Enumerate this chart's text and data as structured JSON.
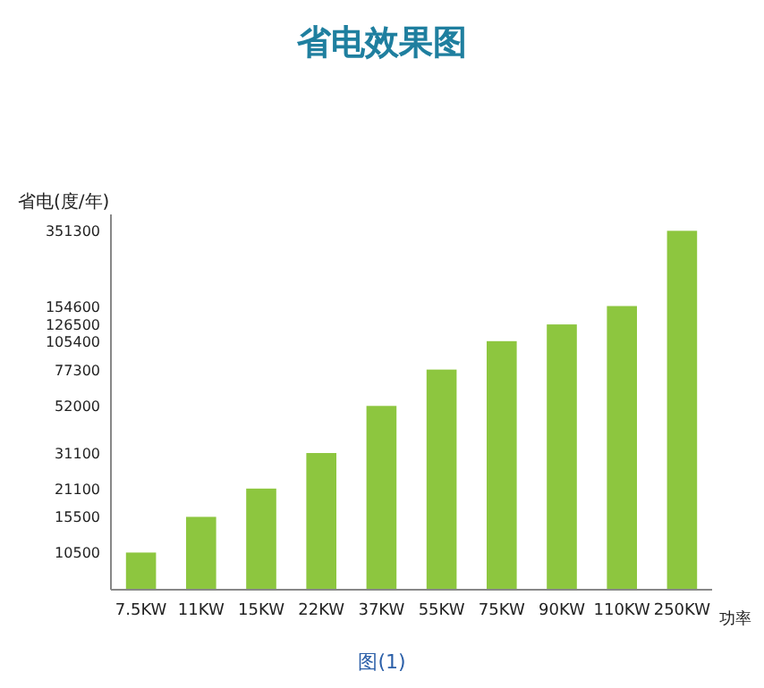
{
  "chart_data": {
    "type": "bar",
    "title": "省电效果图",
    "ylabel": "省电(度/年)",
    "xlabel": "功率",
    "categories": [
      "7.5KW",
      "11KW",
      "15KW",
      "22KW",
      "37KW",
      "55KW",
      "75KW",
      "90KW",
      "110KW",
      "250KW"
    ],
    "values": [
      10500,
      15500,
      21100,
      31100,
      52000,
      77300,
      105400,
      126500,
      154600,
      351300
    ],
    "color": "#8dc63f",
    "log": true,
    "ylim": [
      7000,
      420000
    ],
    "yticks": [
      10500,
      15500,
      21100,
      31100,
      52000,
      77300,
      105400,
      126500,
      154600,
      351300
    ],
    "grid": false,
    "annotations": [
      "图(1)"
    ]
  }
}
